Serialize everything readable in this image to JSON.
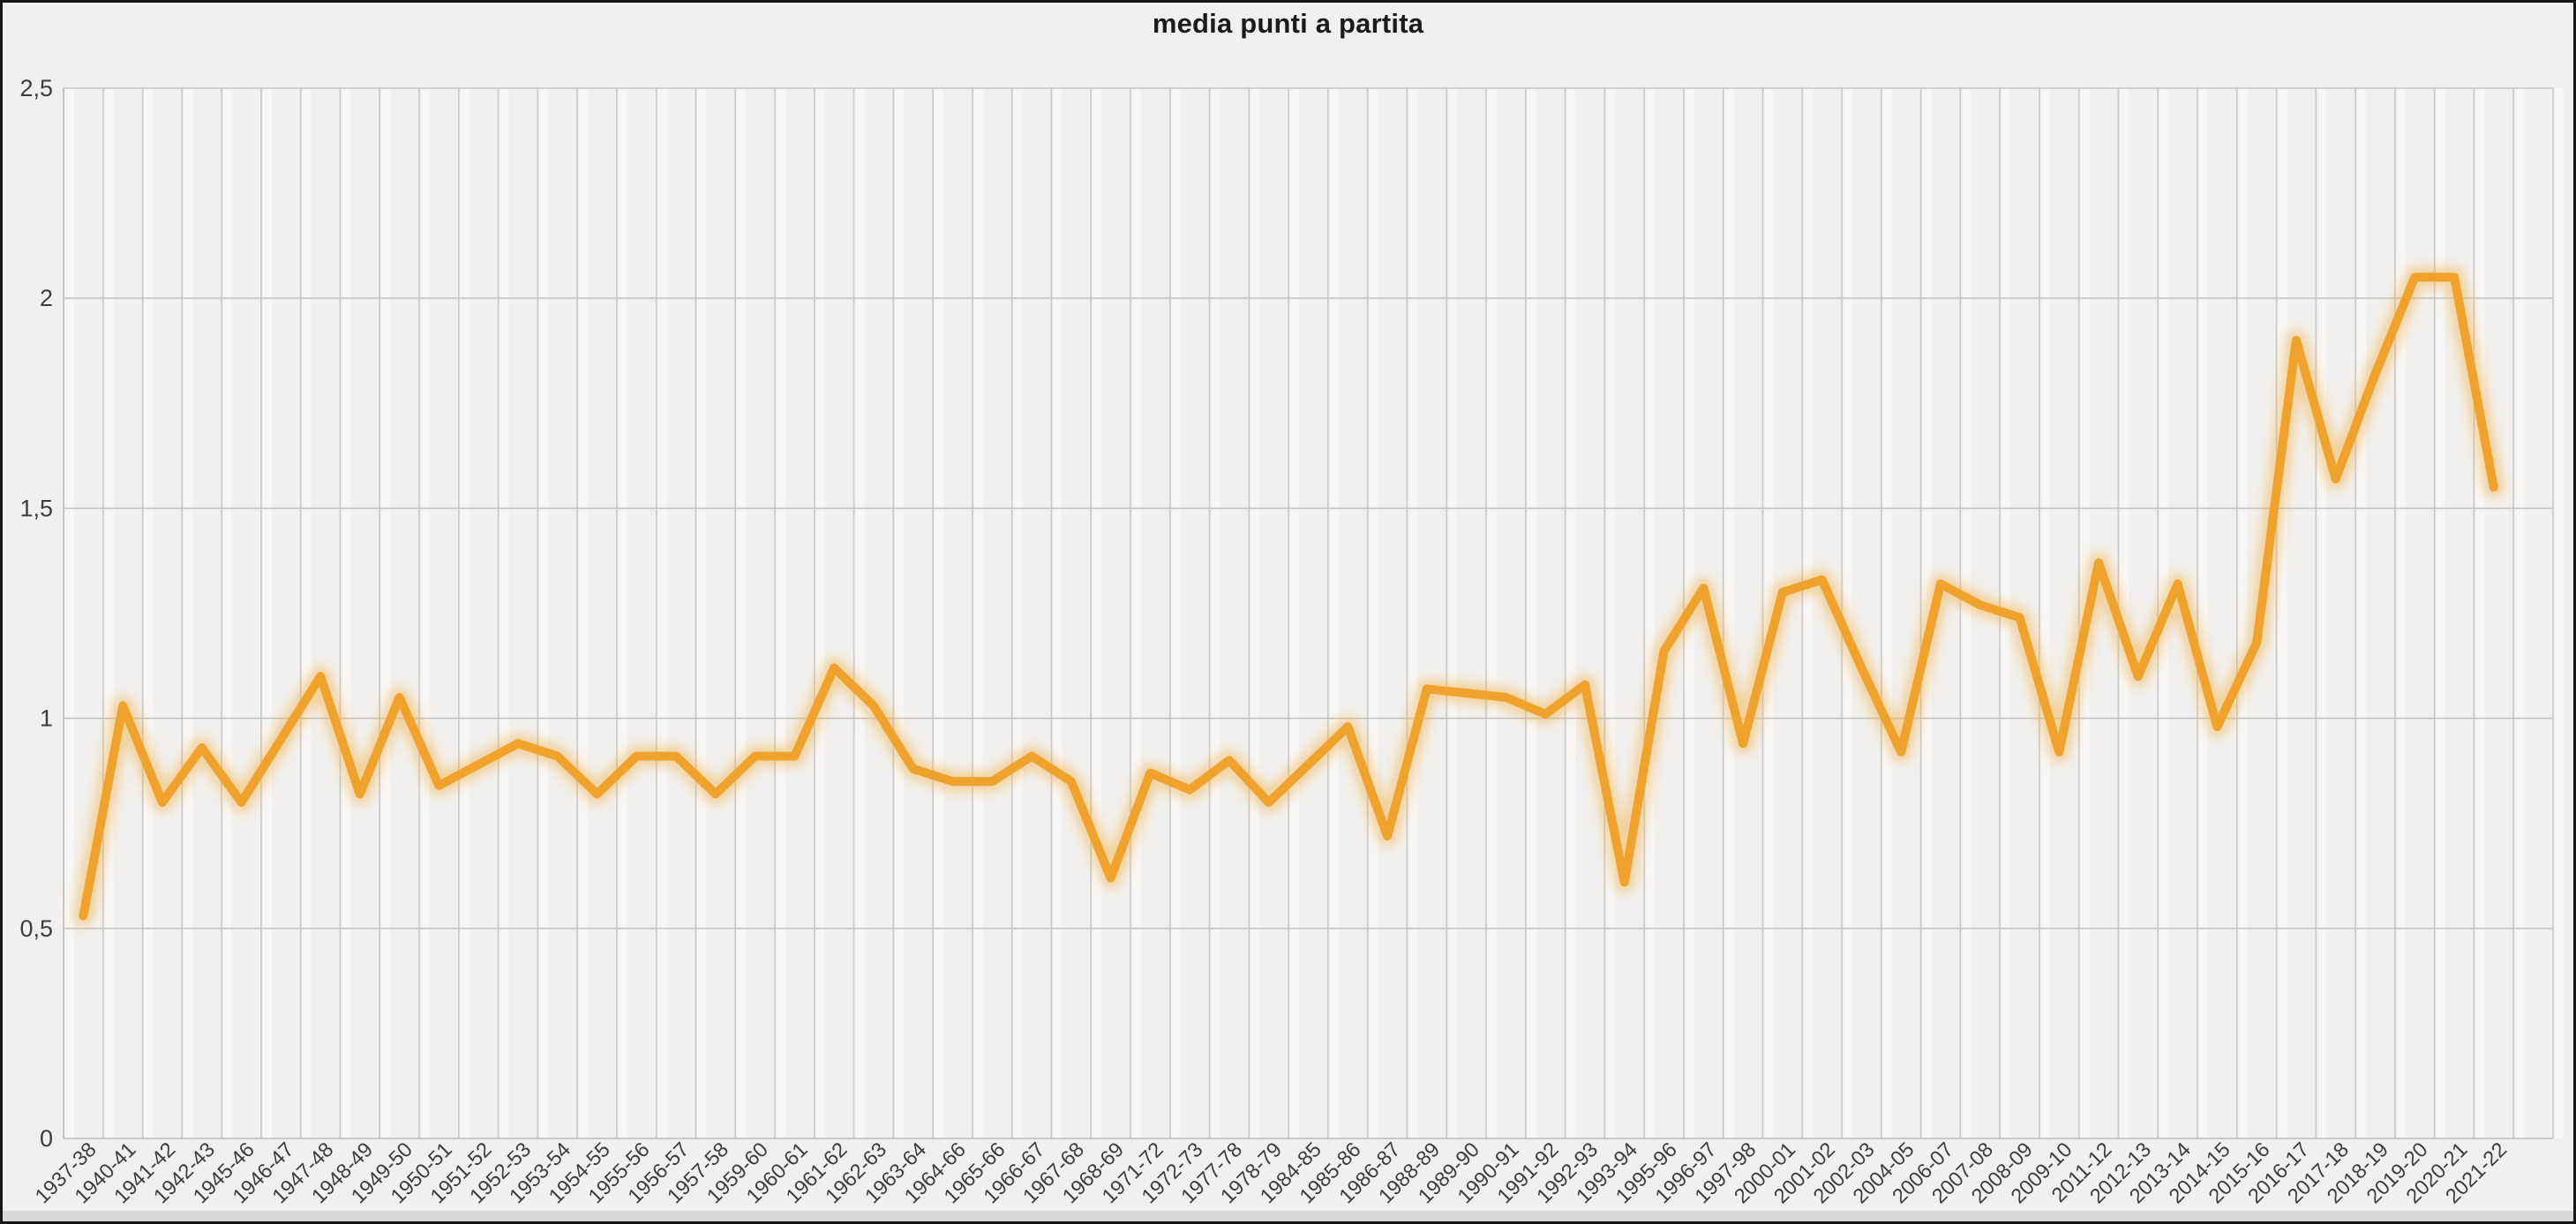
{
  "chart_data": {
    "type": "line",
    "title": "media punti a partita",
    "xlabel": "",
    "ylabel": "",
    "ylim": [
      0,
      2.5
    ],
    "ytick_values": [
      0,
      0.5,
      1,
      1.5,
      2,
      2.5
    ],
    "ytick_labels": [
      "0",
      "0,5",
      "1",
      "1,5",
      "2",
      "2,5"
    ],
    "decimal_separator": ",",
    "grid": {
      "vertical": true,
      "horizontal": true
    },
    "legend": "none",
    "line_color": "#EFA32D",
    "glow_color": "#F3AC3C",
    "categories": [
      "1937-38",
      "1940-41",
      "1941-42",
      "1942-43",
      "1945-46",
      "1946-47",
      "1947-48",
      "1948-49",
      "1949-50",
      "1950-51",
      "1951-52",
      "1952-53",
      "1953-54",
      "1954-55",
      "1955-56",
      "1956-57",
      "1957-58",
      "1959-60",
      "1960-61",
      "1961-62",
      "1962-63",
      "1963-64",
      "1964-66",
      "1965-66",
      "1966-67",
      "1967-68",
      "1968-69",
      "1971-72",
      "1972-73",
      "1977-78",
      "1978-79",
      "1984-85",
      "1985-86",
      "1986-87",
      "1988-89",
      "1989-90",
      "1990-91",
      "1991-92",
      "1992-93",
      "1993-94",
      "1995-96",
      "1996-97",
      "1997-98",
      "2000-01",
      "2001-02",
      "2002-03",
      "2004-05",
      "2006-07",
      "2007-08",
      "2008-09",
      "2009-10",
      "2011-12",
      "2012-13",
      "2013-14",
      "2014-15",
      "2015-16",
      "2016-17",
      "2017-18",
      "2018-19",
      "2019-20",
      "2020-21",
      "2021-22"
    ],
    "values": [
      0.53,
      1.03,
      0.8,
      0.93,
      0.8,
      0.95,
      1.1,
      0.82,
      1.05,
      0.84,
      0.89,
      0.94,
      0.91,
      0.82,
      0.91,
      0.91,
      0.82,
      0.91,
      0.91,
      1.12,
      1.03,
      0.88,
      0.85,
      0.85,
      0.91,
      0.85,
      0.62,
      0.87,
      0.83,
      0.9,
      0.8,
      0.89,
      0.98,
      0.72,
      1.07,
      1.06,
      1.05,
      1.01,
      1.08,
      0.61,
      1.16,
      1.31,
      0.94,
      1.3,
      1.33,
      1.12,
      0.92,
      1.32,
      1.27,
      1.24,
      0.92,
      1.37,
      1.1,
      1.32,
      0.98,
      1.18,
      1.9,
      1.57,
      1.82,
      2.05,
      2.05,
      1.55
    ]
  },
  "colors": {
    "background": "#F1F0EE",
    "frame_border": "#161616",
    "vertical_gridline": "#CBC9C7",
    "horizontal_gridline": "#C6C4C2",
    "axis_line": "#BDBBB9",
    "axis_text": "#3D3D3D",
    "title_text": "#1B1B1B",
    "column_stripe": "#FFFFFF",
    "bottom_strip": "#DAD8D6"
  }
}
